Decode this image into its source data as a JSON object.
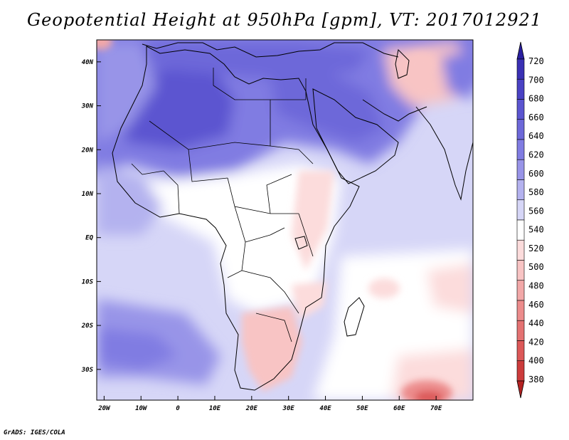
{
  "title": "Geopotential Height at 950hPa [gpm], VT: 2017012921",
  "footer": "GrADS: IGES/COLA",
  "map": {
    "lon_range": [
      -22,
      80
    ],
    "lat_range": [
      -37,
      45
    ],
    "lon_ticks": [
      {
        "value": -20,
        "label": "20W"
      },
      {
        "value": -10,
        "label": "10W"
      },
      {
        "value": 0,
        "label": "0"
      },
      {
        "value": 10,
        "label": "10E"
      },
      {
        "value": 20,
        "label": "20E"
      },
      {
        "value": 30,
        "label": "30E"
      },
      {
        "value": 40,
        "label": "40E"
      },
      {
        "value": 50,
        "label": "50E"
      },
      {
        "value": 60,
        "label": "60E"
      },
      {
        "value": 70,
        "label": "70E"
      }
    ],
    "lat_ticks": [
      {
        "value": 40,
        "label": "40N"
      },
      {
        "value": 30,
        "label": "30N"
      },
      {
        "value": 20,
        "label": "20N"
      },
      {
        "value": 10,
        "label": "10N"
      },
      {
        "value": 0,
        "label": "EQ"
      },
      {
        "value": -10,
        "label": "10S"
      },
      {
        "value": -20,
        "label": "20S"
      },
      {
        "value": -30,
        "label": "30S"
      }
    ]
  },
  "colorbar": {
    "levels": [
      {
        "label": "720",
        "color": "#2a1fa0"
      },
      {
        "label": "700",
        "color": "#3a30b4"
      },
      {
        "label": "680",
        "color": "#4a42c4"
      },
      {
        "label": "660",
        "color": "#5b55d0"
      },
      {
        "label": "640",
        "color": "#6d68d9"
      },
      {
        "label": "620",
        "color": "#807ce2"
      },
      {
        "label": "600",
        "color": "#9894e8"
      },
      {
        "label": "580",
        "color": "#b4b2ef"
      },
      {
        "label": "560",
        "color": "#d6d6f7"
      },
      {
        "label": "540",
        "color": "#ffffff"
      },
      {
        "label": "520",
        "color": "#fcdcdc"
      },
      {
        "label": "500",
        "color": "#f8c4c4"
      },
      {
        "label": "480",
        "color": "#f2a8a8"
      },
      {
        "label": "460",
        "color": "#ec8c8c"
      },
      {
        "label": "440",
        "color": "#e47272"
      },
      {
        "label": "420",
        "color": "#dc5858"
      },
      {
        "label": "400",
        "color": "#cc3c3c"
      },
      {
        "label": "380",
        "color": "#b42222"
      }
    ]
  }
}
